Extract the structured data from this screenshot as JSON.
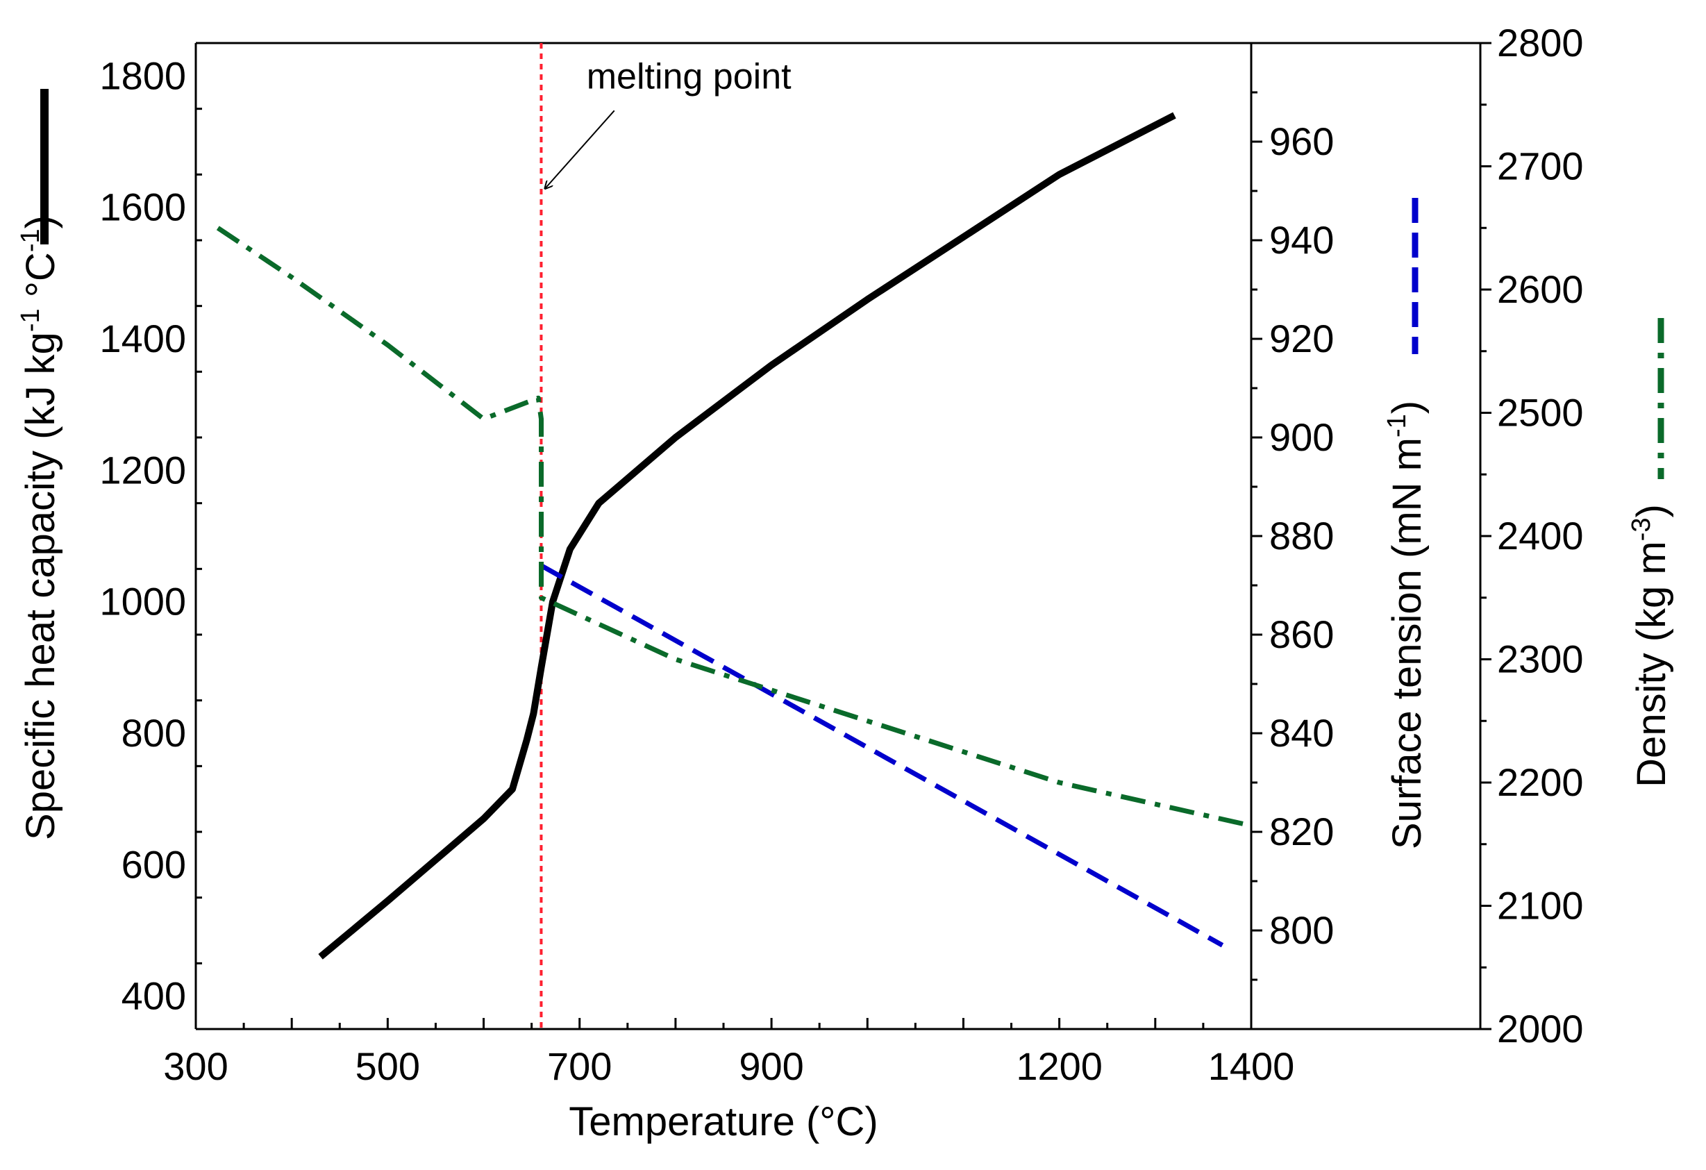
{
  "chart_data": {
    "type": "line",
    "title": "",
    "xlabel": "Temperature (°C)",
    "xlim": [
      300,
      1400
    ],
    "xticks": [
      300,
      500,
      700,
      900,
      1200,
      1400
    ],
    "xtick_labels": [
      "300",
      "500",
      "700",
      "900",
      "1200",
      "1400"
    ],
    "axes": {
      "left": {
        "label": "Specific heat capacity (kJ kg-1 °C-1)",
        "label_parts": [
          "Specific heat capacity (kJ kg",
          "-1",
          " °C",
          "-1",
          ")"
        ],
        "ylim": [
          350,
          1850
        ],
        "ticks": [
          400,
          600,
          800,
          1000,
          1200,
          1400,
          1600,
          1800
        ],
        "tick_labels": [
          "400",
          "600",
          "800",
          "1000",
          "1200",
          "1400",
          "1600",
          "1800"
        ]
      },
      "right_inner": {
        "label": "Surface tension (mN m-1)",
        "label_parts": [
          "Surface tension (mN m",
          "-1",
          ")"
        ],
        "ylim": [
          780,
          980
        ],
        "ticks": [
          800,
          820,
          840,
          860,
          880,
          900,
          920,
          940,
          960
        ],
        "tick_labels": [
          "800",
          "820",
          "840",
          "860",
          "880",
          "900",
          "920",
          "940",
          "960"
        ]
      },
      "right_outer": {
        "label": "Density (kg m-3)",
        "label_parts": [
          "Density (kg m",
          "-3",
          ")"
        ],
        "ylim": [
          2000,
          2800
        ],
        "ticks": [
          2000,
          2100,
          2200,
          2300,
          2400,
          2500,
          2600,
          2700,
          2800
        ],
        "tick_labels": [
          "2000",
          "2100",
          "2200",
          "2300",
          "2400",
          "2500",
          "2600",
          "2700",
          "2800"
        ]
      }
    },
    "series": [
      {
        "name": "Specific heat capacity",
        "axis": "left",
        "color": "#000000",
        "style": "solid",
        "x": [
          430,
          500,
          560,
          600,
          630,
          645,
          652,
          660,
          672,
          690,
          720,
          800,
          900,
          1000,
          1100,
          1200,
          1320
        ],
        "y": [
          460,
          545,
          620,
          670,
          715,
          790,
          830,
          900,
          1000,
          1080,
          1150,
          1250,
          1360,
          1460,
          1555,
          1650,
          1740
        ]
      },
      {
        "name": "Surface tension",
        "axis": "right_inner",
        "color": "#0000cc",
        "style": "dashed",
        "x": [
          660,
          1370
        ],
        "y": [
          874,
          797
        ]
      },
      {
        "name": "Density",
        "axis": "right_outer",
        "color": "#0a6a2a",
        "style": "dash-dot",
        "x": [
          323,
          400,
          500,
          600,
          657,
          660,
          660,
          800,
          1000,
          1200,
          1400
        ],
        "y": [
          2650,
          2610,
          2555,
          2495,
          2512,
          2495,
          2350,
          2300,
          2250,
          2200,
          2165
        ]
      }
    ],
    "reference_line": {
      "label": "melting point",
      "x": 660,
      "color": "#ff2030",
      "style": "dotted",
      "annotation_text": {
        "x": 700,
        "y": 1800
      },
      "annotation_arrow_tip": {
        "x": 660,
        "y": 1625
      }
    },
    "legend_swatches": [
      {
        "series": "Specific heat capacity",
        "color": "#000000",
        "style": "solid"
      },
      {
        "series": "Surface tension",
        "color": "#0000cc",
        "style": "dashed"
      },
      {
        "series": "Density",
        "color": "#0a6a2a",
        "style": "dash-dot"
      }
    ]
  }
}
